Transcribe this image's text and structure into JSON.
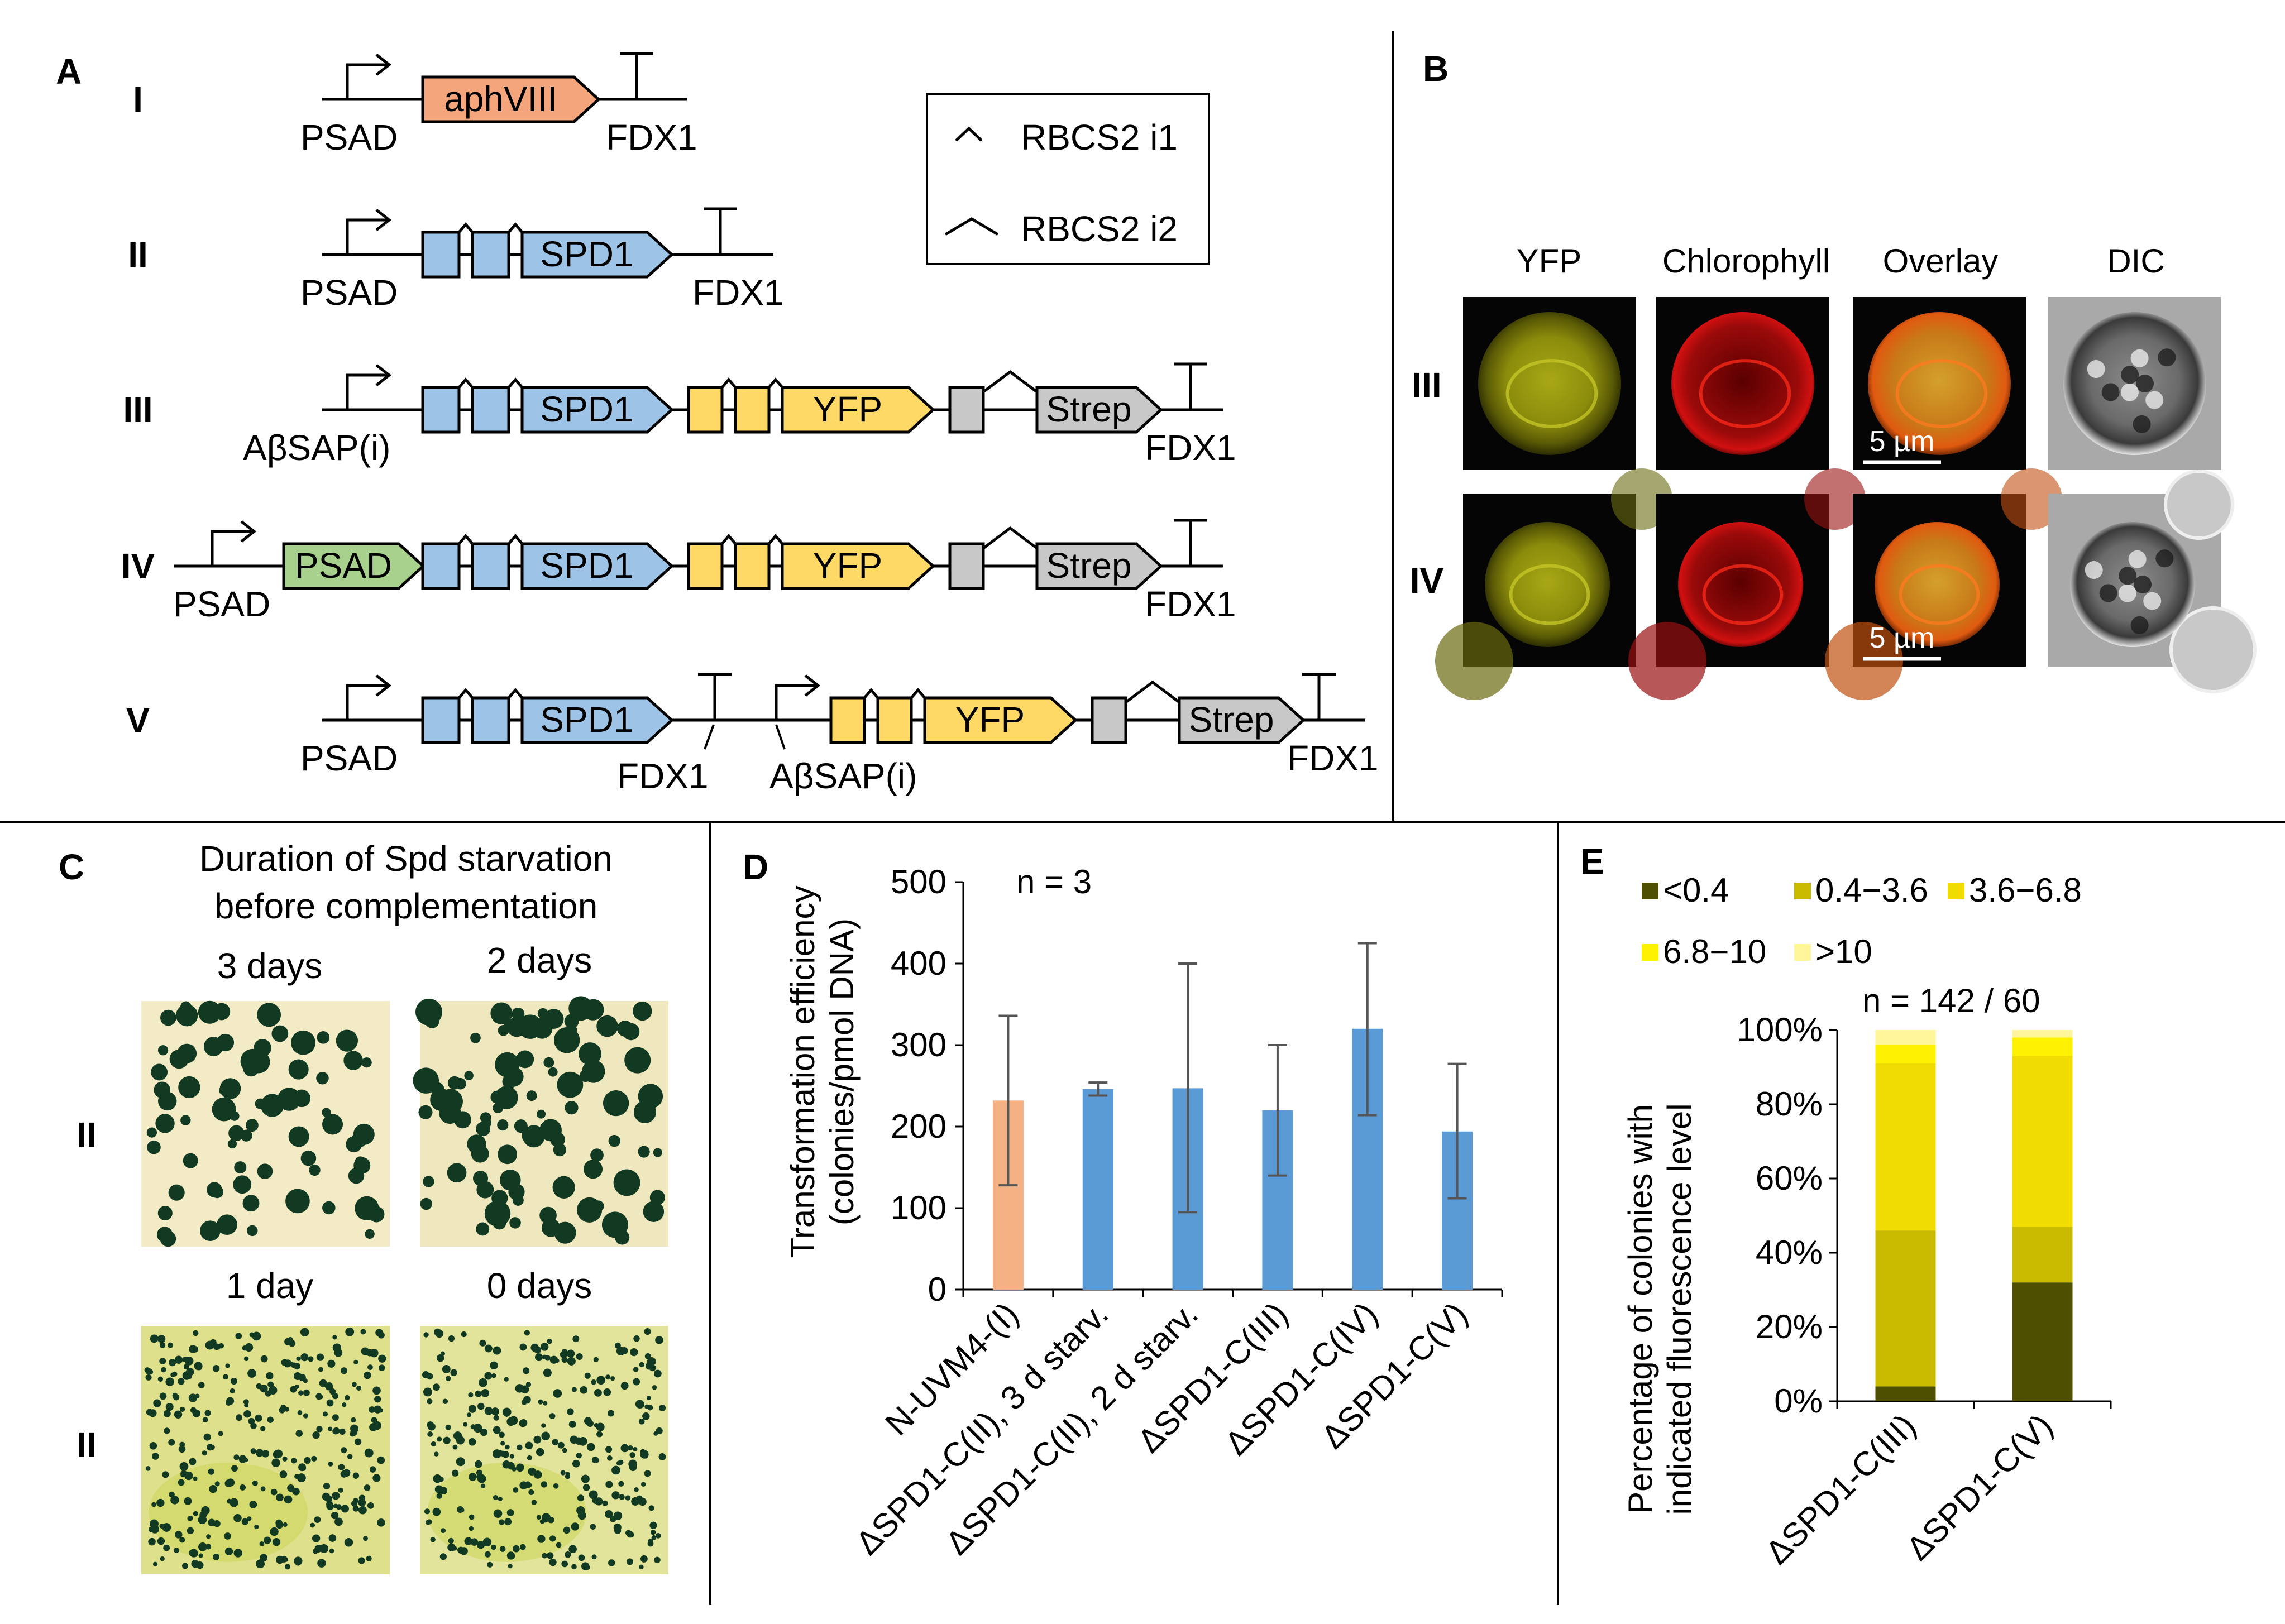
{
  "panel_labels": {
    "a": "A",
    "b": "B",
    "c": "C",
    "d": "D",
    "e": "E"
  },
  "panel_a": {
    "rows": [
      {
        "roman": "I",
        "promoter": "PSAD",
        "gene": "aphVIII",
        "terminator": "FDX1"
      },
      {
        "roman": "II",
        "promoter": "PSAD",
        "gene": "SPD1",
        "terminator": "FDX1"
      },
      {
        "roman": "III",
        "promoter": "AβSAP(i)",
        "gene": "SPD1",
        "fusion": "YFP",
        "tag": "Strep",
        "terminator": "FDX1"
      },
      {
        "roman": "IV",
        "promoter": "PSAD",
        "transit": "PSAD",
        "gene": "SPD1",
        "fusion": "YFP",
        "tag": "Strep",
        "terminator": "FDX1"
      },
      {
        "roman": "V",
        "promoter": "PSAD",
        "gene": "SPD1",
        "terminator": "FDX1",
        "promoter2": "AβSAP(i)",
        "fusion": "YFP",
        "tag": "Strep",
        "terminator2": "FDX1"
      }
    ],
    "legend": {
      "intron1": "RBCS2 i1",
      "intron2": "RBCS2 i2"
    },
    "colors": {
      "aphVIII": "#f4a57c",
      "spd1": "#9dc3e6",
      "yfp": "#ffd966",
      "strep": "#c8c8c8",
      "psad_transit": "#a9d18e"
    }
  },
  "panel_b": {
    "columns": [
      "YFP",
      "Chlorophyll",
      "Overlay",
      "DIC"
    ],
    "rows": [
      "III",
      "IV"
    ],
    "scalebar": "5 µm"
  },
  "panel_c": {
    "title_line1": "Duration of Spd starvation",
    "title_line2": "before complementation",
    "plates": [
      "3 days",
      "2 days",
      "1 day",
      "0 days"
    ],
    "row_labels": [
      "II",
      "II"
    ]
  },
  "panel_d": {
    "annotation": "n = 3",
    "chart_data": {
      "type": "bar",
      "categories": [
        "N-UVM4-(I)",
        "ΔSPD1-C(II), 3 d starv.",
        "ΔSPD1-C(II), 2 d starv.",
        "ΔSPD1-C(III)",
        "ΔSPD1-C(IV)",
        "ΔSPD1-C(V)"
      ],
      "values": [
        232,
        246,
        247,
        220,
        320,
        194
      ],
      "error_low": [
        128,
        238,
        95,
        140,
        214,
        112
      ],
      "error_high": [
        336,
        254,
        400,
        300,
        425,
        277
      ],
      "bar_colors": [
        "#f4b183",
        "#5b9bd5",
        "#5b9bd5",
        "#5b9bd5",
        "#5b9bd5",
        "#5b9bd5"
      ],
      "ylabel_line1": "Transformation efficiency",
      "ylabel_line2": "(colonies/pmol DNA)",
      "ylim": [
        0,
        500
      ],
      "yticks": [
        "0",
        "100",
        "200",
        "300",
        "400",
        "500"
      ]
    }
  },
  "panel_e": {
    "annotation": "n = 142 / 60",
    "chart_data": {
      "type": "bar",
      "stacked": true,
      "categories": [
        "ΔSPD1-C(III)",
        "ΔSPD1-C(V)"
      ],
      "series": [
        {
          "name": "<0.4",
          "values": [
            4,
            32
          ],
          "color": "#4f4f00"
        },
        {
          "name": "0.4−3.6",
          "values": [
            42,
            15
          ],
          "color": "#c9bb00"
        },
        {
          "name": "3.6−6.8",
          "values": [
            45,
            46
          ],
          "color": "#f0dc00"
        },
        {
          "name": "6.8−10",
          "values": [
            5,
            5
          ],
          "color": "#fff200"
        },
        {
          "name": ">10",
          "values": [
            4,
            2
          ],
          "color": "#fff59a"
        }
      ],
      "ylabel_line1": "Percentage of colonies with",
      "ylabel_line2": "indicated fluorescence level",
      "ylim": [
        0,
        100
      ],
      "yticks": [
        "0%",
        "20%",
        "40%",
        "60%",
        "80%",
        "100%"
      ]
    }
  }
}
